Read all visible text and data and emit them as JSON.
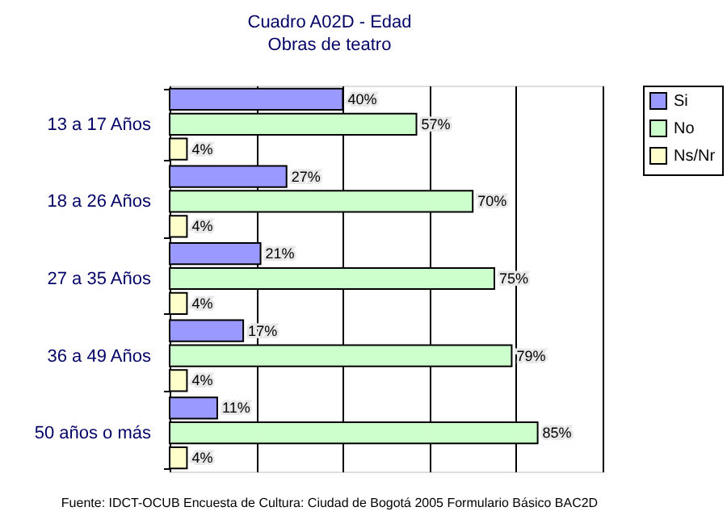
{
  "chart_data": {
    "type": "bar",
    "orientation": "horizontal",
    "title": "Cuadro A02D - Edad",
    "subtitle": "Obras de teatro",
    "categories": [
      "13 a 17 Años",
      "18 a 26 Años",
      "27 a 35 Años",
      "36 a 49 Años",
      "50 años o más"
    ],
    "series": [
      {
        "name": "Si",
        "color": "#9999ff",
        "values": [
          40,
          27,
          21,
          17,
          11
        ],
        "value_labels": [
          "40%",
          "27%",
          "21%",
          "17%",
          "11%"
        ]
      },
      {
        "name": "No",
        "color": "#ccffcc",
        "values": [
          57,
          70,
          75,
          79,
          85
        ],
        "value_labels": [
          "57%",
          "70%",
          "75%",
          "79%",
          "85%"
        ]
      },
      {
        "name": "Ns/Nr",
        "color": "#ffffcc",
        "values": [
          4,
          4,
          4,
          4,
          4
        ],
        "value_labels": [
          "4%",
          "4%",
          "4%",
          "4%",
          "4%"
        ]
      }
    ],
    "xlim": [
      0,
      100
    ],
    "xticks": [
      {
        "value": 0,
        "label": null
      },
      {
        "value": 20,
        "label": null
      },
      {
        "value": 40,
        "label": null
      },
      {
        "value": 60,
        "label": null
      },
      {
        "value": 80,
        "label": null
      },
      {
        "value": 100,
        "label": null
      }
    ],
    "tick_labels": "y",
    "grid": "x",
    "legend": "right",
    "annotations": [
      "Fuente: IDCT-OCUB Encuesta de Cultura: Ciudad de Bogotá 2005 Formulario Básico BAC2D"
    ]
  }
}
